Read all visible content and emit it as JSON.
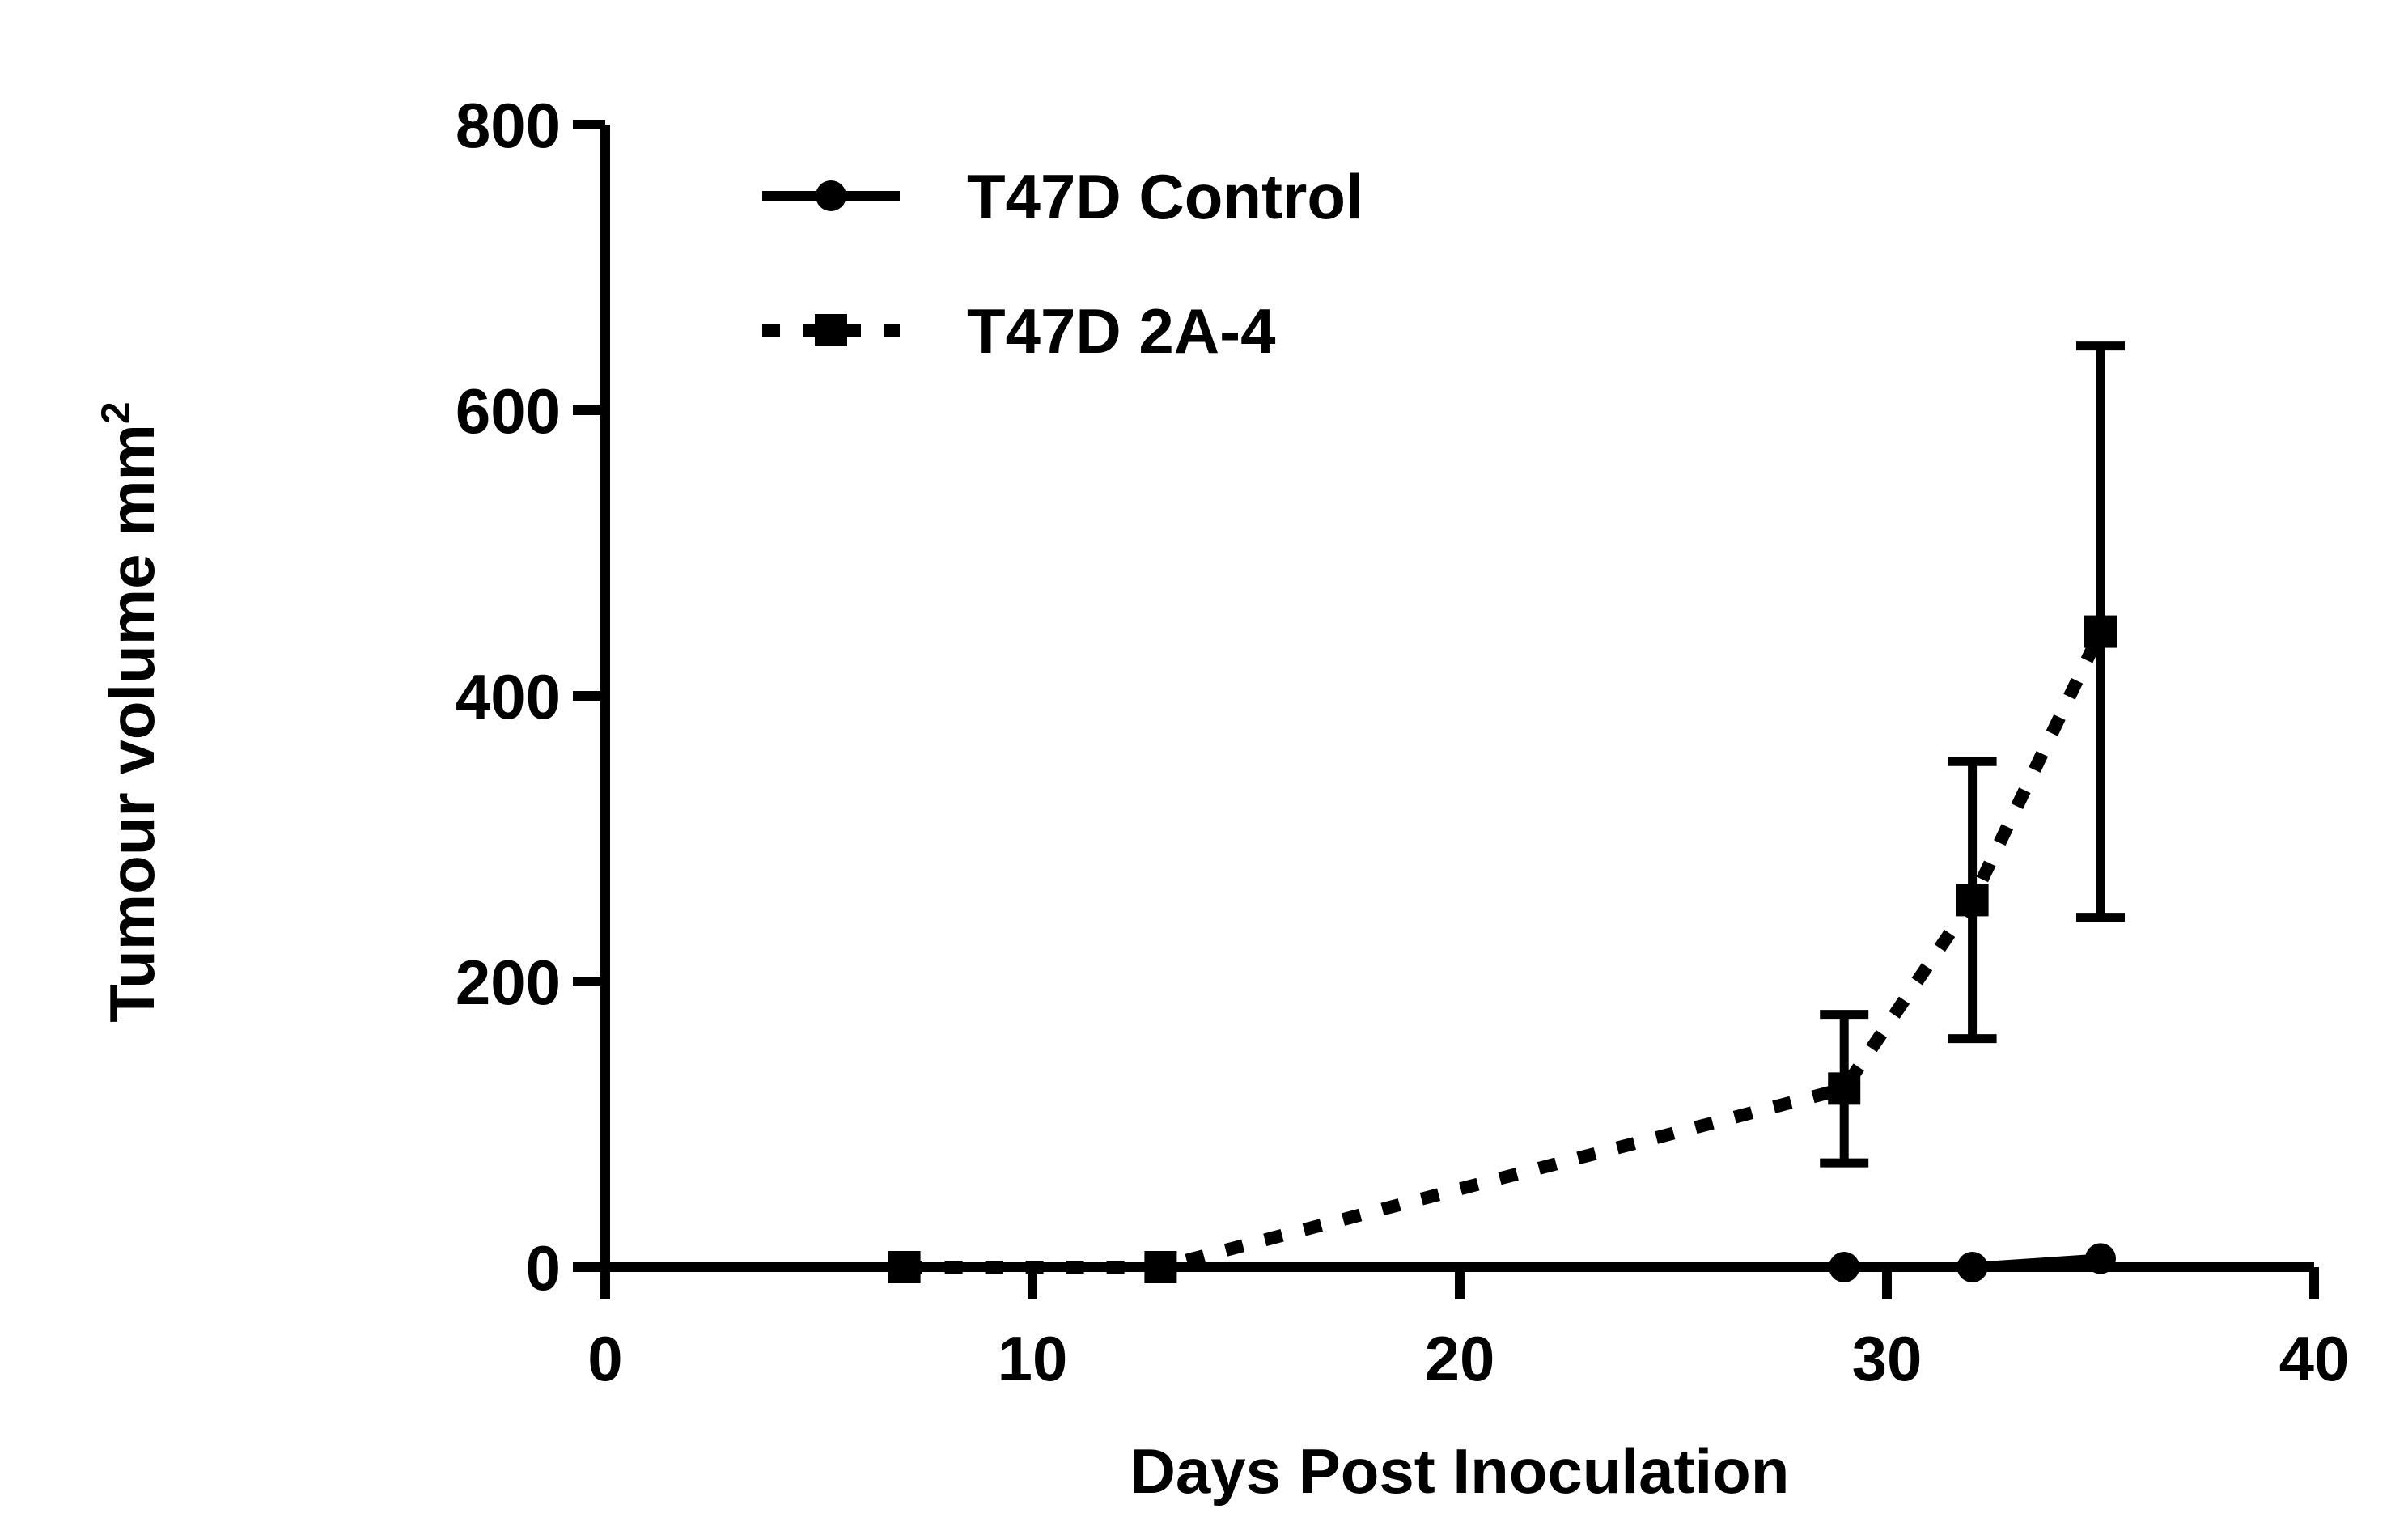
{
  "chart_data": {
    "type": "line",
    "title": "",
    "xlabel": "Days Post Inoculation",
    "ylabel": "Tumour volume mm",
    "ylabel_superscript": "2",
    "xlim": [
      0,
      40
    ],
    "ylim": [
      0,
      800
    ],
    "x_ticks": [
      "0",
      "10",
      "20",
      "30",
      "40"
    ],
    "y_ticks": [
      "0",
      "200",
      "400",
      "600",
      "800"
    ],
    "grid": false,
    "legend_position": "top-left",
    "series": [
      {
        "name": "T47D Control",
        "line_style": "solid",
        "marker": "circle",
        "x": [
          7,
          13,
          29,
          32,
          35
        ],
        "y": [
          0,
          0,
          0,
          0,
          6
        ],
        "error": [
          0,
          0,
          0,
          0,
          0
        ]
      },
      {
        "name": "T47D 2A-4",
        "line_style": "dotted",
        "marker": "square",
        "x": [
          7,
          13,
          29,
          32,
          35
        ],
        "y": [
          0,
          0,
          125,
          257,
          445
        ],
        "error": [
          0,
          0,
          52,
          97,
          200
        ]
      }
    ],
    "colors": {
      "line": "#000000",
      "background": "#ffffff"
    }
  }
}
